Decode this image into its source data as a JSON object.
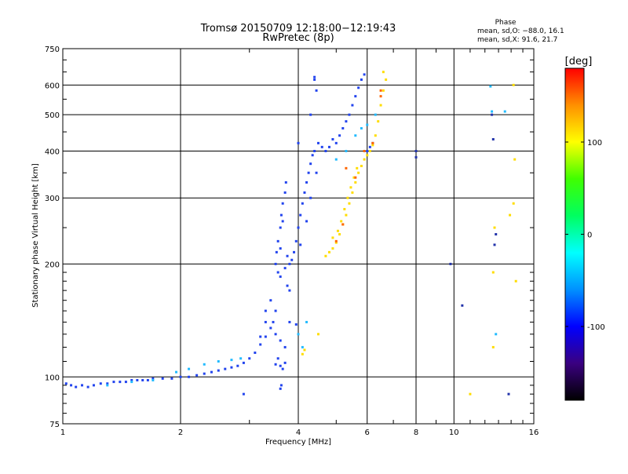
{
  "chart_data": {
    "type": "scatter",
    "title": "Tromsø 20150709 12:18:00−12:19:43",
    "subtitle": "RwPretec (8p)",
    "xlabel": "Frequency [MHz]",
    "ylabel": "Stationary phase Virtual Height [km]",
    "x_scale": "log",
    "y_scale": "log",
    "xlim": [
      1,
      16
    ],
    "ylim": [
      75,
      750
    ],
    "x_ticks": [
      {
        "value": 1,
        "label": "1"
      },
      {
        "value": 2,
        "label": "2"
      },
      {
        "value": 4,
        "label": "4"
      },
      {
        "value": 6,
        "label": "6"
      },
      {
        "value": 8,
        "label": "8"
      },
      {
        "value": 10,
        "label": "10"
      },
      {
        "value": 16,
        "label": "16"
      }
    ],
    "y_ticks": [
      {
        "value": 75,
        "label": "75"
      },
      {
        "value": 100,
        "label": "100"
      },
      {
        "value": 200,
        "label": "200"
      },
      {
        "value": 300,
        "label": "300"
      },
      {
        "value": 400,
        "label": "400"
      },
      {
        "value": 500,
        "label": "500"
      },
      {
        "value": 600,
        "label": "600"
      },
      {
        "value": 750,
        "label": "750"
      }
    ],
    "grid": true,
    "phase_box": {
      "title": "Phase",
      "line1": "mean, sd,O: −88.0, 16.1",
      "line2": "mean, sd,X:  91.6, 21.7"
    },
    "colorbar": {
      "label": "[deg]",
      "range": [
        -180,
        180
      ],
      "ticks": [
        {
          "value": 100,
          "label": "100"
        },
        {
          "value": 0,
          "label": "0"
        },
        {
          "value": -100,
          "label": "-100"
        }
      ],
      "colors": [
        "#000000",
        "#3a0080",
        "#0000ff",
        "#0090ff",
        "#00ffff",
        "#00ff60",
        "#40ff00",
        "#ffff00",
        "#ff9000",
        "#ff0000"
      ]
    },
    "series": [
      {
        "mode": "O",
        "color": "#2244ee",
        "points": [
          [
            1.02,
            96
          ],
          [
            1.05,
            95
          ],
          [
            1.08,
            94
          ],
          [
            1.12,
            95
          ],
          [
            1.16,
            94
          ],
          [
            1.2,
            95
          ],
          [
            1.25,
            96
          ],
          [
            1.3,
            96
          ],
          [
            1.35,
            97
          ],
          [
            1.4,
            97
          ],
          [
            1.45,
            97
          ],
          [
            1.5,
            98
          ],
          [
            1.55,
            98
          ],
          [
            1.6,
            98
          ],
          [
            1.65,
            98
          ],
          [
            1.7,
            99
          ],
          [
            1.8,
            99
          ],
          [
            1.9,
            99
          ],
          [
            2.0,
            100
          ],
          [
            2.1,
            100
          ],
          [
            2.2,
            101
          ],
          [
            2.3,
            102
          ],
          [
            2.4,
            103
          ],
          [
            2.5,
            104
          ],
          [
            2.6,
            105
          ],
          [
            2.7,
            106
          ],
          [
            2.8,
            107
          ],
          [
            2.9,
            109
          ],
          [
            3.0,
            112
          ],
          [
            3.1,
            116
          ],
          [
            3.2,
            122
          ],
          [
            3.3,
            128
          ],
          [
            3.4,
            135
          ],
          [
            3.45,
            140
          ],
          [
            3.5,
            150
          ],
          [
            3.5,
            130
          ],
          [
            3.6,
            125
          ],
          [
            3.7,
            120
          ],
          [
            3.8,
            140
          ],
          [
            3.95,
            138
          ],
          [
            3.5,
            108
          ],
          [
            3.6,
            107
          ],
          [
            3.7,
            109
          ],
          [
            3.55,
            112
          ],
          [
            3.65,
            105
          ],
          [
            3.6,
            93
          ],
          [
            3.62,
            95
          ],
          [
            2.9,
            90
          ],
          [
            3.5,
            200
          ],
          [
            3.52,
            215
          ],
          [
            3.55,
            230
          ],
          [
            3.6,
            250
          ],
          [
            3.62,
            270
          ],
          [
            3.65,
            290
          ],
          [
            3.7,
            310
          ],
          [
            3.72,
            330
          ],
          [
            3.6,
            220
          ],
          [
            3.65,
            260
          ],
          [
            3.55,
            190
          ],
          [
            3.6,
            185
          ],
          [
            3.7,
            195
          ],
          [
            3.75,
            210
          ],
          [
            3.8,
            200
          ],
          [
            3.85,
            205
          ],
          [
            3.9,
            215
          ],
          [
            3.95,
            230
          ],
          [
            4.0,
            250
          ],
          [
            4.05,
            270
          ],
          [
            4.1,
            290
          ],
          [
            4.15,
            310
          ],
          [
            4.2,
            330
          ],
          [
            4.25,
            350
          ],
          [
            4.3,
            370
          ],
          [
            4.35,
            390
          ],
          [
            4.4,
            400
          ],
          [
            4.5,
            420
          ],
          [
            4.6,
            410
          ],
          [
            4.7,
            400
          ],
          [
            4.8,
            410
          ],
          [
            4.9,
            430
          ],
          [
            5.0,
            420
          ],
          [
            5.1,
            440
          ],
          [
            5.2,
            460
          ],
          [
            5.3,
            480
          ],
          [
            5.4,
            500
          ],
          [
            5.5,
            530
          ],
          [
            5.6,
            560
          ],
          [
            5.7,
            590
          ],
          [
            5.8,
            620
          ],
          [
            5.9,
            640
          ],
          [
            6.0,
            400
          ],
          [
            6.1,
            410
          ],
          [
            6.2,
            420
          ],
          [
            4.4,
            630
          ],
          [
            4.4,
            620
          ],
          [
            4.3,
            500
          ],
          [
            4.0,
            420
          ],
          [
            4.45,
            580
          ],
          [
            3.3,
            150
          ],
          [
            3.4,
            160
          ],
          [
            3.3,
            140
          ],
          [
            3.2,
            128
          ],
          [
            3.75,
            175
          ],
          [
            3.8,
            170
          ],
          [
            4.05,
            225
          ],
          [
            4.2,
            260
          ],
          [
            4.3,
            300
          ],
          [
            4.45,
            350
          ]
        ]
      },
      {
        "mode": "O-cyan",
        "color": "#22bbff",
        "points": [
          [
            1.3,
            95
          ],
          [
            1.5,
            97
          ],
          [
            1.7,
            98
          ],
          [
            1.95,
            103
          ],
          [
            2.1,
            105
          ],
          [
            2.3,
            108
          ],
          [
            2.5,
            110
          ],
          [
            2.7,
            111
          ],
          [
            2.85,
            112
          ],
          [
            4.1,
            120
          ],
          [
            4.0,
            130
          ],
          [
            4.2,
            140
          ],
          [
            5.0,
            380
          ],
          [
            5.3,
            400
          ],
          [
            5.6,
            440
          ],
          [
            5.8,
            460
          ],
          [
            6.0,
            470
          ],
          [
            6.3,
            500
          ],
          [
            12.5,
            510
          ],
          [
            13.5,
            510
          ],
          [
            12.4,
            595
          ],
          [
            12.8,
            130
          ]
        ]
      },
      {
        "mode": "X",
        "color": "#ffdd00",
        "points": [
          [
            4.7,
            210
          ],
          [
            4.8,
            215
          ],
          [
            4.9,
            220
          ],
          [
            5.0,
            228
          ],
          [
            5.1,
            240
          ],
          [
            5.2,
            255
          ],
          [
            5.3,
            270
          ],
          [
            5.4,
            290
          ],
          [
            5.5,
            310
          ],
          [
            5.6,
            330
          ],
          [
            5.7,
            350
          ],
          [
            5.8,
            365
          ],
          [
            5.9,
            380
          ],
          [
            6.0,
            390
          ],
          [
            6.1,
            400
          ],
          [
            6.2,
            415
          ],
          [
            6.3,
            440
          ],
          [
            6.4,
            480
          ],
          [
            6.5,
            530
          ],
          [
            6.6,
            580
          ],
          [
            6.7,
            620
          ],
          [
            6.6,
            650
          ],
          [
            4.9,
            235
          ],
          [
            5.05,
            245
          ],
          [
            5.15,
            260
          ],
          [
            5.25,
            280
          ],
          [
            5.35,
            300
          ],
          [
            5.45,
            320
          ],
          [
            5.55,
            340
          ],
          [
            5.65,
            360
          ],
          [
            4.1,
            115
          ],
          [
            4.15,
            118
          ],
          [
            4.5,
            130
          ],
          [
            14.2,
            600
          ],
          [
            14.3,
            380
          ],
          [
            14.2,
            290
          ],
          [
            13.9,
            270
          ],
          [
            12.7,
            250
          ],
          [
            12.6,
            190
          ],
          [
            12.6,
            120
          ],
          [
            14.4,
            180
          ],
          [
            11.0,
            90
          ]
        ]
      },
      {
        "mode": "X-orange",
        "color": "#ff6600",
        "points": [
          [
            5.0,
            230
          ],
          [
            5.3,
            360
          ],
          [
            5.6,
            340
          ],
          [
            5.9,
            400
          ],
          [
            6.2,
            420
          ],
          [
            6.5,
            580
          ],
          [
            6.5,
            560
          ],
          [
            5.2,
            255
          ]
        ]
      },
      {
        "mode": "isolated",
        "color": "#2233aa",
        "points": [
          [
            8.0,
            385
          ],
          [
            8.0,
            400
          ],
          [
            12.6,
            430
          ],
          [
            12.8,
            240
          ],
          [
            12.7,
            225
          ],
          [
            9.8,
            200
          ],
          [
            10.5,
            155
          ],
          [
            13.8,
            90
          ],
          [
            12.5,
            500
          ]
        ]
      }
    ]
  }
}
